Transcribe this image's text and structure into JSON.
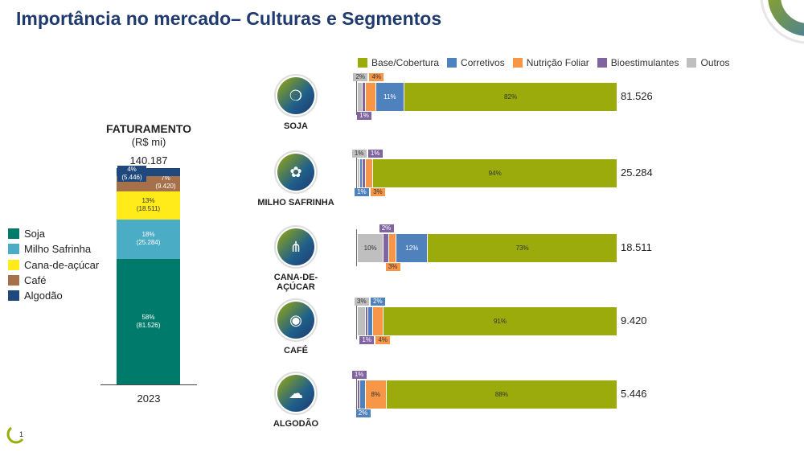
{
  "title": "Importância no mercado– Culturas e Segmentos",
  "page_number": "1",
  "chart_data": [
    {
      "type": "bar",
      "stacked": true,
      "orientation": "vertical",
      "title": "FATURAMENTO",
      "subtitle": "(R$ mi)",
      "total_label": "140.187",
      "categories": [
        "2023"
      ],
      "series": [
        {
          "name": "Soja",
          "value": 81526,
          "pct_label": "58%",
          "value_label": "(81.526)",
          "color": "#007a6b"
        },
        {
          "name": "Milho Safrinha",
          "value": 25284,
          "pct_label": "18%",
          "value_label": "(25.284)",
          "color": "#4bacc6"
        },
        {
          "name": "Cana-de-açúcar",
          "value": 18511,
          "pct_label": "13%",
          "value_label": "(18.511)",
          "color": "#ffeb1a"
        },
        {
          "name": "Café",
          "value": 9420,
          "pct_label": "7%",
          "value_label": "(9.420)",
          "color": "#a5704a"
        },
        {
          "name": "Algodão",
          "value": 5446,
          "pct_label": "4%",
          "value_label": "(5.446)",
          "color": "#1f497d"
        }
      ]
    },
    {
      "type": "bar",
      "stacked": true,
      "orientation": "horizontal",
      "percent": true,
      "legend_position": "top",
      "segments": [
        {
          "name": "Base/Cobertura",
          "color": "#9aab0b"
        },
        {
          "name": "Corretivos",
          "color": "#4f81bd"
        },
        {
          "name": "Nutrição Foliar",
          "color": "#f79646"
        },
        {
          "name": "Bioestimulantes",
          "color": "#8064a2"
        },
        {
          "name": "Outros",
          "color": "#bfbfbf"
        }
      ],
      "rows": [
        {
          "crop": "SOJA",
          "icon": "soybean-icon",
          "total": "81.526",
          "stack": [
            [
              "Outros",
              2
            ],
            [
              "Bioestimulantes",
              1
            ],
            [
              "Nutrição Foliar",
              4
            ],
            [
              "Corretivos",
              11
            ],
            [
              "Base/Cobertura",
              82
            ]
          ]
        },
        {
          "crop": "MILHO SAFRINHA",
          "icon": "corn-icon",
          "total": "25.284",
          "stack": [
            [
              "Outros",
              1
            ],
            [
              "Corretivos",
              1
            ],
            [
              "Bioestimulantes",
              1
            ],
            [
              "Nutrição Foliar",
              3
            ],
            [
              "Base/Cobertura",
              94
            ]
          ]
        },
        {
          "crop": "CANA-DE-AÇÚCAR",
          "icon": "sugarcane-icon",
          "total": "18.511",
          "stack": [
            [
              "Outros",
              10
            ],
            [
              "Bioestimulantes",
              2
            ],
            [
              "Nutrição Foliar",
              3
            ],
            [
              "Corretivos",
              12
            ],
            [
              "Base/Cobertura",
              73
            ]
          ]
        },
        {
          "crop": "CAFÉ",
          "icon": "coffee-bean-icon",
          "total": "9.420",
          "stack": [
            [
              "Outros",
              3
            ],
            [
              "Bioestimulantes",
              1
            ],
            [
              "Corretivos",
              2
            ],
            [
              "Nutrição Foliar",
              4
            ],
            [
              "Base/Cobertura",
              91
            ]
          ]
        },
        {
          "crop": "ALGODÃO",
          "icon": "cotton-icon",
          "total": "5.446",
          "stack": [
            [
              "Bioestimulantes",
              1
            ],
            [
              "Corretivos",
              2
            ],
            [
              "Nutrição Foliar",
              8
            ],
            [
              "Base/Cobertura",
              88
            ]
          ]
        }
      ]
    }
  ]
}
